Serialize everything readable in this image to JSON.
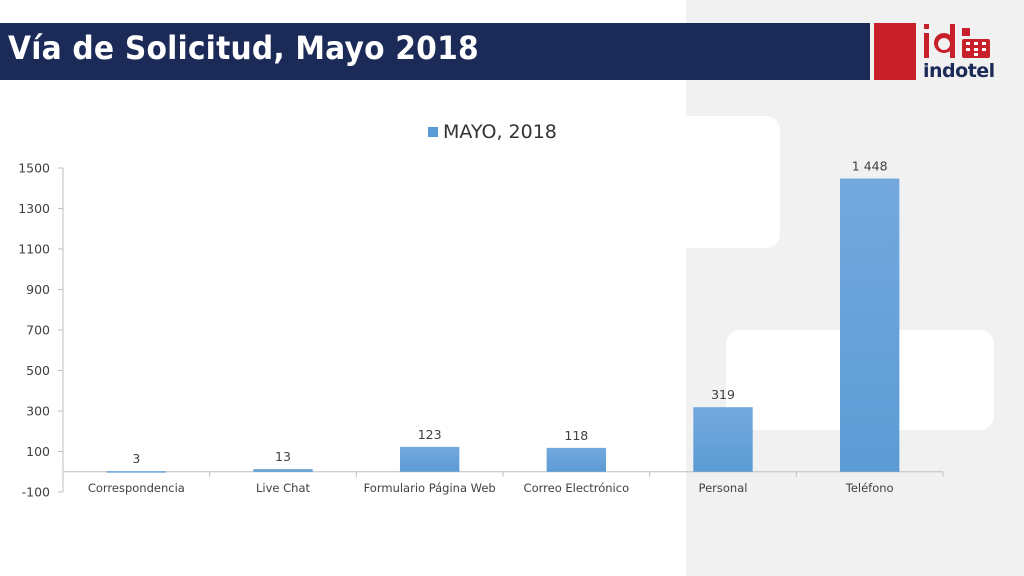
{
  "slide": {
    "title": "Vía de Solicitud, Mayo 2018",
    "logo_text": "indotel",
    "logo_mark": "id"
  },
  "colors": {
    "title_bar": "#1b2a57",
    "brand_red": "#c8202b",
    "bar": "#5b9bd5",
    "background_panel": "#f1f1f1"
  },
  "chart_data": {
    "type": "bar",
    "categories": [
      "Correspondencia",
      "Live Chat",
      "Formulario Página Web",
      "Correo Electrónico",
      "Personal",
      "Teléfono"
    ],
    "series": [
      {
        "name": "MAYO, 2018",
        "values": [
          3,
          13,
          123,
          118,
          319,
          1448
        ]
      }
    ],
    "data_labels": [
      "3",
      "13",
      "123",
      "118",
      "319",
      "1 448"
    ],
    "yticks": [
      "1500",
      "1300",
      "1100",
      "900",
      "700",
      "500",
      "300",
      "100",
      "-100"
    ],
    "ylim": [
      -100,
      1500
    ],
    "legend_position": "top",
    "grid": false
  }
}
